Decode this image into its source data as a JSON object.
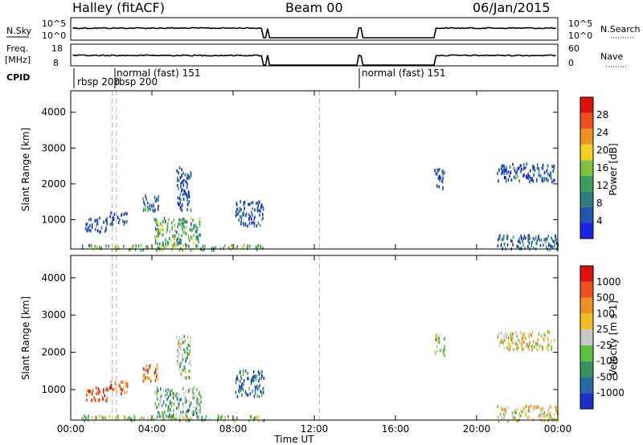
{
  "header": {
    "station": "Halley (fitACF)",
    "beam": "Beam 00",
    "date": "06/Jan/2015"
  },
  "strips": {
    "nsky": {
      "label": "N.Sky",
      "ticks": [
        "10^5",
        "10^0"
      ],
      "right_label": "N.Search",
      "right_ticks": [
        "10^5",
        "10^0"
      ]
    },
    "freq": {
      "label_line1": "Freq.",
      "label_line2": "[MHz]",
      "ticks": [
        "18",
        "8"
      ],
      "right_label": "Nave",
      "right_ticks": [
        "60",
        "0"
      ]
    },
    "cpid": {
      "label": "CPID",
      "segments": [
        "rbsp 200",
        "rbsp 200",
        "normal (fast) 151",
        "normal (fast) 151"
      ]
    }
  },
  "colors": {
    "power_scale": [
      "#1a22e6",
      "#2255b0",
      "#2f7d7d",
      "#3aa060",
      "#80c040",
      "#f0d020",
      "#f09020",
      "#f05020",
      "#e01010"
    ],
    "velocity_scale": [
      "#e01010",
      "#f05020",
      "#f09020",
      "#f0c020",
      "#c8c8c8",
      "#60c040",
      "#3a9060",
      "#2a6aa0",
      "#1a32c8"
    ]
  },
  "chart_data": [
    {
      "type": "heatmap",
      "title": "",
      "xlabel": "Time UT",
      "ylabel": "Slant Range [km]",
      "xlim": [
        "00:00",
        "24:00"
      ],
      "x_ticks": [
        "00:00",
        "04:00",
        "08:00",
        "12:00",
        "16:00",
        "20:00",
        "00:00"
      ],
      "ylim": [
        180,
        4600
      ],
      "y_ticks": [
        1000,
        2000,
        3000,
        4000
      ],
      "colorbar": {
        "label": "Power [dB]",
        "ticks": [
          4,
          8,
          12,
          16,
          20,
          24,
          28
        ],
        "range": [
          0,
          32
        ]
      },
      "clusters": [
        {
          "t0": 0.5,
          "t1": 9.5,
          "r0": 190,
          "r1": 330,
          "level": 0.45
        },
        {
          "t0": 4.1,
          "t1": 6.4,
          "r0": 300,
          "r1": 1100,
          "level": 0.4
        },
        {
          "t0": 0.7,
          "t1": 1.8,
          "r0": 700,
          "r1": 1100,
          "level": 0.15
        },
        {
          "t0": 1.9,
          "t1": 2.8,
          "r0": 900,
          "r1": 1250,
          "level": 0.15
        },
        {
          "t0": 3.5,
          "t1": 4.3,
          "r0": 1250,
          "r1": 1700,
          "level": 0.2
        },
        {
          "t0": 5.2,
          "t1": 5.9,
          "r0": 1300,
          "r1": 2500,
          "level": 0.15
        },
        {
          "t0": 8.1,
          "t1": 9.5,
          "r0": 850,
          "r1": 1550,
          "level": 0.15
        },
        {
          "t0": 17.9,
          "t1": 18.4,
          "r0": 1900,
          "r1": 2500,
          "level": 0.15
        },
        {
          "t0": 21.0,
          "t1": 23.8,
          "r0": 2100,
          "r1": 2600,
          "level": 0.15
        },
        {
          "t0": 21.0,
          "t1": 24.0,
          "r0": 190,
          "r1": 600,
          "level": 0.2
        }
      ]
    },
    {
      "type": "heatmap",
      "title": "",
      "xlabel": "Time UT",
      "ylabel": "Slant Range [km]",
      "xlim": [
        "00:00",
        "24:00"
      ],
      "x_ticks": [
        "00:00",
        "04:00",
        "08:00",
        "12:00",
        "16:00",
        "20:00",
        "00:00"
      ],
      "ylim": [
        180,
        4600
      ],
      "y_ticks": [
        1000,
        2000,
        3000,
        4000
      ],
      "colorbar": {
        "label": "Velocity [m s-1]",
        "ticks": [
          1000,
          500,
          100,
          25,
          -25,
          -100,
          -500,
          -1000
        ]
      },
      "clusters": [
        {
          "t0": 0.5,
          "t1": 9.5,
          "r0": 190,
          "r1": 330,
          "level": 0.55
        },
        {
          "t0": 4.1,
          "t1": 6.4,
          "r0": 300,
          "r1": 1100,
          "level": 0.65
        },
        {
          "t0": 0.7,
          "t1": 1.8,
          "r0": 700,
          "r1": 1100,
          "level": 0.2
        },
        {
          "t0": 1.9,
          "t1": 2.8,
          "r0": 900,
          "r1": 1250,
          "level": 0.2
        },
        {
          "t0": 3.5,
          "t1": 4.3,
          "r0": 1250,
          "r1": 1700,
          "level": 0.2
        },
        {
          "t0": 5.2,
          "t1": 5.9,
          "r0": 1300,
          "r1": 2500,
          "level": 0.6
        },
        {
          "t0": 8.1,
          "t1": 9.5,
          "r0": 850,
          "r1": 1550,
          "level": 0.85
        },
        {
          "t0": 17.9,
          "t1": 18.4,
          "r0": 1900,
          "r1": 2500,
          "level": 0.6
        },
        {
          "t0": 21.0,
          "t1": 23.8,
          "r0": 2100,
          "r1": 2600,
          "level": 0.45
        },
        {
          "t0": 21.0,
          "t1": 24.0,
          "r0": 190,
          "r1": 600,
          "level": 0.45
        }
      ]
    }
  ],
  "subtitle_colorbar_units": {
    "power": "Power [dB]",
    "velocity": "Velocity [m s"
  }
}
